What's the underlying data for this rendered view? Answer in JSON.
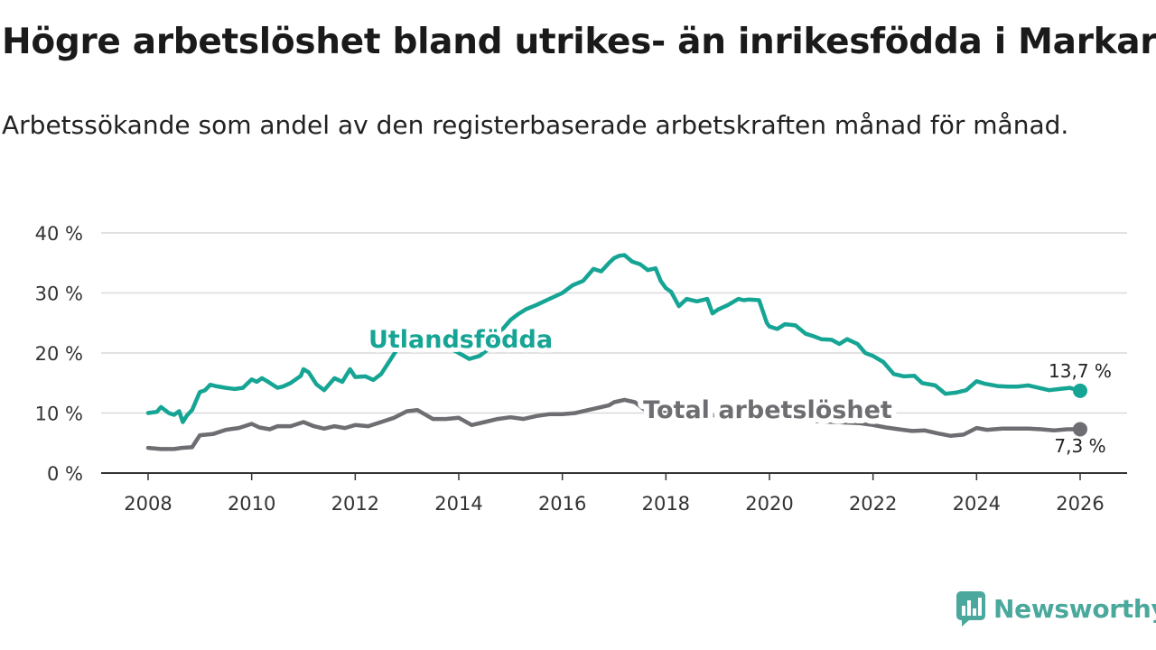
{
  "title": "Högre arbetslöshet bland utrikes- än inrikesfödda i Markaryd",
  "subtitle": "Arbetssökande som andel av den registerbaserade arbetskraften månad för månad.",
  "brand": "Newsworthy",
  "colors": {
    "foreign": "#16a595",
    "total": "#6e6e72",
    "logo": "#4aa89c"
  },
  "chart_data": {
    "type": "line",
    "title": "Högre arbetslöshet bland utrikes- än inrikesfödda i Markaryd",
    "xlabel": "",
    "ylabel": "",
    "xlim": [
      2008,
      2026
    ],
    "ylim": [
      0,
      40
    ],
    "yticks": [
      0,
      10,
      20,
      30,
      40
    ],
    "ytick_labels": [
      "0 %",
      "10 %",
      "20 %",
      "30 %",
      "40 %"
    ],
    "xticks": [
      2008,
      2010,
      2012,
      2014,
      2016,
      2018,
      2020,
      2022,
      2024,
      2026
    ],
    "xtick_labels": [
      "2008",
      "2010",
      "2012",
      "2014",
      "2016",
      "2018",
      "2020",
      "2022",
      "2024",
      "2026"
    ],
    "grid": true,
    "series": [
      {
        "name": "Utlandsfödda",
        "label": "Utlandsfödda",
        "color": "#16a595",
        "end_label": "13,7 %",
        "x": [
          2008.0,
          2008.17,
          2008.25,
          2008.4,
          2008.5,
          2008.6,
          2008.67,
          2008.75,
          2008.85,
          2009.0,
          2009.1,
          2009.2,
          2009.3,
          2009.5,
          2009.67,
          2009.83,
          2010.0,
          2010.1,
          2010.2,
          2010.3,
          2010.5,
          2010.6,
          2010.75,
          2010.85,
          2010.95,
          2011.0,
          2011.1,
          2011.25,
          2011.4,
          2011.6,
          2011.75,
          2011.9,
          2012.0,
          2012.2,
          2012.35,
          2012.5,
          2012.65,
          2012.8,
          2013.0,
          2013.2,
          2013.4,
          2013.6,
          2013.8,
          2014.0,
          2014.2,
          2014.4,
          2014.55,
          2014.7,
          2014.85,
          2015.0,
          2015.15,
          2015.3,
          2015.5,
          2015.75,
          2016.0,
          2016.2,
          2016.4,
          2016.6,
          2016.75,
          2016.9,
          2017.0,
          2017.1,
          2017.2,
          2017.35,
          2017.5,
          2017.65,
          2017.8,
          2017.9,
          2018.0,
          2018.1,
          2018.25,
          2018.4,
          2018.6,
          2018.8,
          2018.9,
          2019.0,
          2019.2,
          2019.4,
          2019.5,
          2019.6,
          2019.8,
          2019.95,
          2020.0,
          2020.15,
          2020.3,
          2020.5,
          2020.7,
          2020.85,
          2021.0,
          2021.2,
          2021.35,
          2021.5,
          2021.7,
          2021.85,
          2022.0,
          2022.2,
          2022.4,
          2022.6,
          2022.8,
          2022.95,
          2023.2,
          2023.4,
          2023.6,
          2023.8,
          2024.0,
          2024.15,
          2024.4,
          2024.6,
          2024.8,
          2025.0,
          2025.2,
          2025.4,
          2025.6,
          2025.8,
          2026.0
        ],
        "values": [
          10.0,
          10.2,
          11.0,
          10.0,
          9.7,
          10.3,
          8.5,
          9.6,
          10.5,
          13.5,
          13.8,
          14.7,
          14.5,
          14.2,
          14.0,
          14.2,
          15.6,
          15.2,
          15.8,
          15.3,
          14.2,
          14.4,
          15.0,
          15.6,
          16.2,
          17.3,
          16.8,
          14.8,
          13.8,
          15.8,
          15.2,
          17.3,
          16.0,
          16.1,
          15.5,
          16.5,
          18.5,
          20.5,
          21.0,
          20.5,
          21.5,
          22.0,
          21.0,
          20.0,
          19.0,
          19.5,
          20.5,
          22.5,
          24.0,
          25.5,
          26.5,
          27.3,
          28.0,
          29.0,
          30.0,
          31.3,
          32.0,
          34.0,
          33.6,
          35.0,
          35.8,
          36.2,
          36.3,
          35.2,
          34.8,
          33.8,
          34.1,
          32.0,
          30.8,
          30.2,
          27.8,
          29.0,
          28.6,
          29.0,
          26.6,
          27.2,
          28.0,
          29.0,
          28.8,
          28.9,
          28.8,
          25.0,
          24.4,
          24.0,
          24.8,
          24.6,
          23.2,
          22.8,
          22.3,
          22.2,
          21.5,
          22.3,
          21.5,
          20.0,
          19.5,
          18.5,
          16.5,
          16.1,
          16.2,
          15.0,
          14.6,
          13.2,
          13.4,
          13.8,
          15.3,
          14.9,
          14.5,
          14.4,
          14.4,
          14.6,
          14.2,
          13.8,
          14.0,
          14.2,
          13.7
        ]
      },
      {
        "name": "Total arbetslöshet",
        "label": "Total arbetslöshet",
        "color": "#6e6e72",
        "end_label": "7,3 %",
        "x": [
          2008.0,
          2008.25,
          2008.5,
          2008.65,
          2008.85,
          2009.0,
          2009.25,
          2009.5,
          2009.75,
          2010.0,
          2010.15,
          2010.35,
          2010.5,
          2010.75,
          2011.0,
          2011.2,
          2011.4,
          2011.6,
          2011.8,
          2012.0,
          2012.25,
          2012.5,
          2012.75,
          2013.0,
          2013.2,
          2013.5,
          2013.75,
          2014.0,
          2014.25,
          2014.5,
          2014.75,
          2015.0,
          2015.25,
          2015.5,
          2015.75,
          2016.0,
          2016.25,
          2016.5,
          2016.75,
          2016.9,
          2017.0,
          2017.2,
          2017.4,
          2017.6,
          2017.75,
          2018.0,
          2018.5,
          2019.0,
          2019.5,
          2020.0,
          2020.5,
          2021.0,
          2021.5,
          2021.75,
          2022.0,
          2022.25,
          2022.5,
          2022.75,
          2023.0,
          2023.25,
          2023.5,
          2023.75,
          2024.0,
          2024.2,
          2024.5,
          2024.75,
          2025.0,
          2025.25,
          2025.5,
          2025.75,
          2026.0
        ],
        "values": [
          4.2,
          4.0,
          4.0,
          4.2,
          4.3,
          6.3,
          6.5,
          7.2,
          7.5,
          8.2,
          7.6,
          7.3,
          7.8,
          7.8,
          8.5,
          7.8,
          7.4,
          7.8,
          7.5,
          8.0,
          7.8,
          8.5,
          9.2,
          10.3,
          10.5,
          9.0,
          9.0,
          9.2,
          8.0,
          8.5,
          9.0,
          9.3,
          9.0,
          9.5,
          9.8,
          9.8,
          10.0,
          10.5,
          11.0,
          11.3,
          11.8,
          12.2,
          11.8,
          10.5,
          10.3,
          10.0,
          9.8,
          9.6,
          9.4,
          9.2,
          8.9,
          8.6,
          8.4,
          8.3,
          8.0,
          7.6,
          7.3,
          7.0,
          7.1,
          6.6,
          6.2,
          6.4,
          7.5,
          7.2,
          7.4,
          7.4,
          7.4,
          7.3,
          7.1,
          7.3,
          7.3
        ]
      }
    ]
  }
}
